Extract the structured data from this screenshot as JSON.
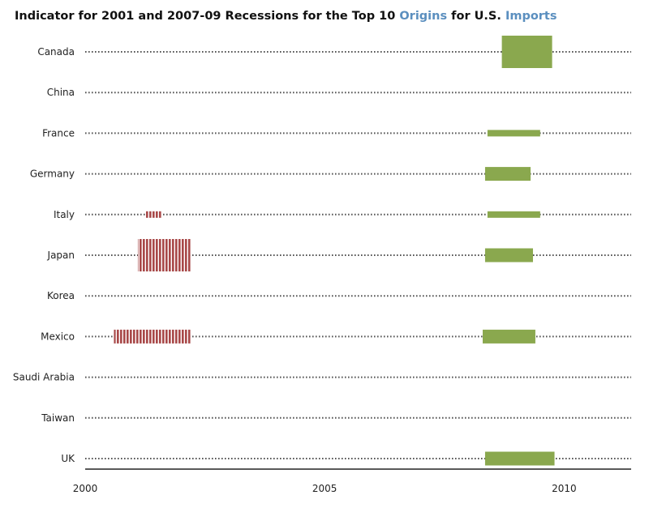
{
  "title": {
    "part1": "Indicator for 2001 and 2007-09 Recessions for the Top 10 ",
    "link1": "Origins",
    "part2": " for U.S. ",
    "link2": "Imports"
  },
  "chart_data": {
    "type": "gantt",
    "title": "Indicator for 2001 and 2007-09 Recessions for the Top 10 Origins for U.S. Imports",
    "x_ticks": [
      2000,
      2005,
      2010
    ],
    "xlim": [
      2000,
      2011.4
    ],
    "colors": {
      "2001 recession": "#a84848",
      "2007-09 recession": "#8aa84e"
    },
    "categories": [
      "Canada",
      "China",
      "France",
      "Germany",
      "Italy",
      "Japan",
      "Korea",
      "Mexico",
      "Saudi Arabia",
      "Taiwan",
      "UK"
    ],
    "recessions": [
      {
        "country": "Canada",
        "episode": "2007-09",
        "start": 2008.7,
        "end": 2009.75,
        "intensity": "high"
      },
      {
        "country": "France",
        "episode": "2007-09",
        "start": 2008.4,
        "end": 2009.5,
        "intensity": "low"
      },
      {
        "country": "Germany",
        "episode": "2007-09",
        "start": 2008.35,
        "end": 2009.3,
        "intensity": "medium"
      },
      {
        "country": "Italy",
        "episode": "2001",
        "start": 2001.25,
        "end": 2001.6,
        "intensity": "low"
      },
      {
        "country": "Italy",
        "episode": "2007-09",
        "start": 2008.4,
        "end": 2009.5,
        "intensity": "low"
      },
      {
        "country": "Japan",
        "episode": "2001",
        "start": 2001.1,
        "end": 2002.2,
        "intensity": "high"
      },
      {
        "country": "Japan",
        "episode": "2007-09",
        "start": 2008.35,
        "end": 2009.35,
        "intensity": "medium"
      },
      {
        "country": "Mexico",
        "episode": "2001",
        "start": 2000.6,
        "end": 2002.2,
        "intensity": "medium"
      },
      {
        "country": "Mexico",
        "episode": "2007-09",
        "start": 2008.3,
        "end": 2009.4,
        "intensity": "medium"
      },
      {
        "country": "UK",
        "episode": "2007-09",
        "start": 2008.35,
        "end": 2009.8,
        "intensity": "medium"
      }
    ]
  }
}
